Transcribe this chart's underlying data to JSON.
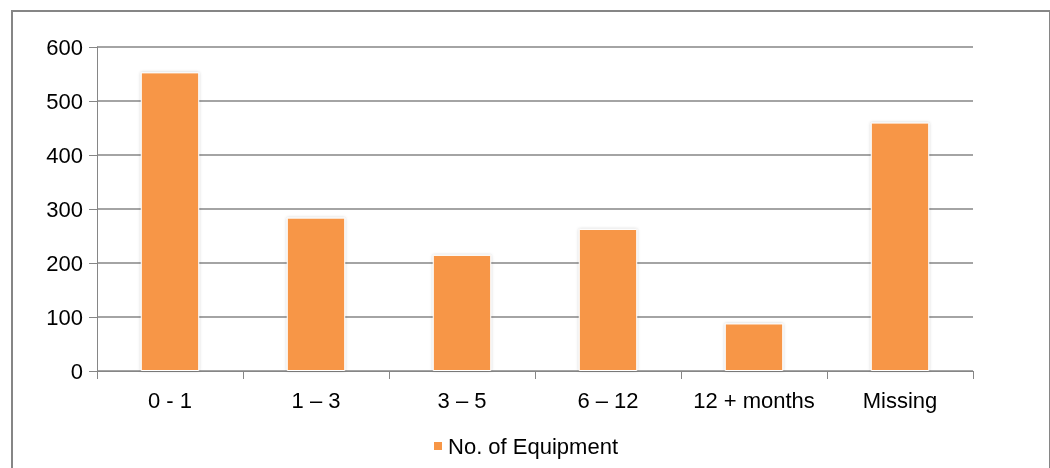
{
  "chart_data": {
    "type": "bar",
    "categories": [
      "0 - 1",
      "1 – 3",
      "3 – 5",
      "6 – 12",
      "12 + months",
      "Missing"
    ],
    "series": [
      {
        "name": "No. of Equipment",
        "color": "#f79646",
        "values": [
          553,
          284,
          215,
          263,
          88,
          460
        ]
      }
    ],
    "ylim": [
      0,
      600
    ],
    "yticks": [
      0,
      100,
      200,
      300,
      400,
      500,
      600
    ],
    "grid": "y",
    "legend": "bottom"
  }
}
